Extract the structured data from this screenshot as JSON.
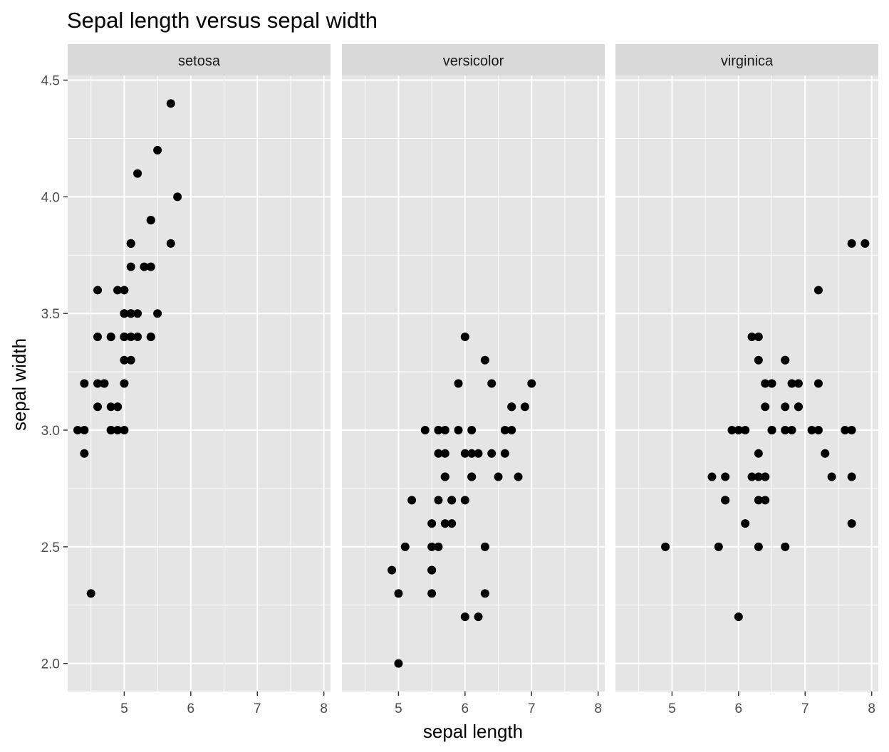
{
  "chart_data": {
    "type": "scatter",
    "title": "Sepal length versus sepal width",
    "xlabel": "sepal length",
    "ylabel": "sepal width",
    "xlim": [
      4.15,
      8.1
    ],
    "ylim": [
      1.88,
      4.52
    ],
    "x_ticks": [
      5,
      6,
      7,
      8
    ],
    "x_tick_labels": [
      "5",
      "6",
      "7",
      "8"
    ],
    "y_ticks": [
      2.0,
      2.5,
      3.0,
      3.5,
      4.0,
      4.5
    ],
    "y_tick_labels": [
      "2.0",
      "2.5",
      "3.0",
      "3.5",
      "4.0",
      "4.5"
    ],
    "grid": true,
    "colors": {
      "panel_background": "#e5e5e5",
      "strip_background": "#d9d9d9",
      "grid": "#ffffff",
      "point": "#000000"
    },
    "facets": [
      {
        "label": "setosa",
        "points": [
          [
            5.1,
            3.5
          ],
          [
            4.9,
            3.0
          ],
          [
            4.7,
            3.2
          ],
          [
            4.6,
            3.1
          ],
          [
            5.0,
            3.6
          ],
          [
            5.4,
            3.9
          ],
          [
            4.6,
            3.4
          ],
          [
            5.0,
            3.4
          ],
          [
            4.4,
            2.9
          ],
          [
            4.9,
            3.1
          ],
          [
            5.4,
            3.7
          ],
          [
            4.8,
            3.4
          ],
          [
            4.8,
            3.0
          ],
          [
            4.3,
            3.0
          ],
          [
            5.8,
            4.0
          ],
          [
            5.7,
            4.4
          ],
          [
            5.4,
            3.9
          ],
          [
            5.1,
            3.5
          ],
          [
            5.7,
            3.8
          ],
          [
            5.1,
            3.8
          ],
          [
            5.4,
            3.4
          ],
          [
            5.1,
            3.7
          ],
          [
            4.6,
            3.6
          ],
          [
            5.1,
            3.3
          ],
          [
            4.8,
            3.4
          ],
          [
            5.0,
            3.0
          ],
          [
            5.0,
            3.4
          ],
          [
            5.2,
            3.5
          ],
          [
            5.2,
            3.4
          ],
          [
            4.7,
            3.2
          ],
          [
            4.8,
            3.1
          ],
          [
            5.4,
            3.4
          ],
          [
            5.2,
            4.1
          ],
          [
            5.5,
            4.2
          ],
          [
            4.9,
            3.1
          ],
          [
            5.0,
            3.2
          ],
          [
            5.5,
            3.5
          ],
          [
            4.9,
            3.6
          ],
          [
            4.4,
            3.0
          ],
          [
            5.1,
            3.4
          ],
          [
            5.0,
            3.5
          ],
          [
            4.5,
            2.3
          ],
          [
            4.4,
            3.2
          ],
          [
            5.0,
            3.5
          ],
          [
            5.1,
            3.8
          ],
          [
            4.8,
            3.0
          ],
          [
            5.1,
            3.8
          ],
          [
            4.6,
            3.2
          ],
          [
            5.3,
            3.7
          ],
          [
            5.0,
            3.3
          ]
        ]
      },
      {
        "label": "versicolor",
        "points": [
          [
            7.0,
            3.2
          ],
          [
            6.4,
            3.2
          ],
          [
            6.9,
            3.1
          ],
          [
            5.5,
            2.3
          ],
          [
            6.5,
            2.8
          ],
          [
            5.7,
            2.8
          ],
          [
            6.3,
            3.3
          ],
          [
            4.9,
            2.4
          ],
          [
            6.6,
            2.9
          ],
          [
            5.2,
            2.7
          ],
          [
            5.0,
            2.0
          ],
          [
            5.9,
            3.0
          ],
          [
            6.0,
            2.2
          ],
          [
            6.1,
            2.9
          ],
          [
            5.6,
            2.9
          ],
          [
            6.7,
            3.1
          ],
          [
            5.6,
            3.0
          ],
          [
            5.8,
            2.7
          ],
          [
            6.2,
            2.2
          ],
          [
            5.6,
            2.5
          ],
          [
            5.9,
            3.2
          ],
          [
            6.1,
            2.8
          ],
          [
            6.3,
            2.5
          ],
          [
            6.1,
            2.8
          ],
          [
            6.4,
            2.9
          ],
          [
            6.6,
            3.0
          ],
          [
            6.8,
            2.8
          ],
          [
            6.7,
            3.0
          ],
          [
            6.0,
            2.9
          ],
          [
            5.7,
            2.6
          ],
          [
            5.5,
            2.4
          ],
          [
            5.5,
            2.4
          ],
          [
            5.8,
            2.7
          ],
          [
            6.0,
            2.7
          ],
          [
            5.4,
            3.0
          ],
          [
            6.0,
            3.4
          ],
          [
            6.7,
            3.1
          ],
          [
            6.3,
            2.3
          ],
          [
            5.6,
            3.0
          ],
          [
            5.5,
            2.5
          ],
          [
            5.5,
            2.6
          ],
          [
            6.1,
            3.0
          ],
          [
            5.8,
            2.6
          ],
          [
            5.0,
            2.3
          ],
          [
            5.6,
            2.7
          ],
          [
            5.7,
            3.0
          ],
          [
            5.7,
            2.9
          ],
          [
            6.2,
            2.9
          ],
          [
            5.1,
            2.5
          ],
          [
            5.7,
            2.8
          ]
        ]
      },
      {
        "label": "virginica",
        "points": [
          [
            6.3,
            3.3
          ],
          [
            5.8,
            2.7
          ],
          [
            7.1,
            3.0
          ],
          [
            6.3,
            2.9
          ],
          [
            6.5,
            3.0
          ],
          [
            7.6,
            3.0
          ],
          [
            4.9,
            2.5
          ],
          [
            7.3,
            2.9
          ],
          [
            6.7,
            2.5
          ],
          [
            7.2,
            3.6
          ],
          [
            6.5,
            3.2
          ],
          [
            6.4,
            2.7
          ],
          [
            6.8,
            3.0
          ],
          [
            5.7,
            2.5
          ],
          [
            5.8,
            2.8
          ],
          [
            6.4,
            3.2
          ],
          [
            6.5,
            3.0
          ],
          [
            7.7,
            3.8
          ],
          [
            7.7,
            2.6
          ],
          [
            6.0,
            2.2
          ],
          [
            6.9,
            3.2
          ],
          [
            5.6,
            2.8
          ],
          [
            7.7,
            2.8
          ],
          [
            6.3,
            2.7
          ],
          [
            6.7,
            3.3
          ],
          [
            7.2,
            3.2
          ],
          [
            6.2,
            2.8
          ],
          [
            6.1,
            3.0
          ],
          [
            6.4,
            2.8
          ],
          [
            7.2,
            3.0
          ],
          [
            7.4,
            2.8
          ],
          [
            7.9,
            3.8
          ],
          [
            6.4,
            2.8
          ],
          [
            6.3,
            2.8
          ],
          [
            6.1,
            2.6
          ],
          [
            7.7,
            3.0
          ],
          [
            6.3,
            3.4
          ],
          [
            6.4,
            3.1
          ],
          [
            6.0,
            3.0
          ],
          [
            6.9,
            3.1
          ],
          [
            6.7,
            3.1
          ],
          [
            6.9,
            3.1
          ],
          [
            5.8,
            2.7
          ],
          [
            6.8,
            3.2
          ],
          [
            6.7,
            3.3
          ],
          [
            6.7,
            3.0
          ],
          [
            6.3,
            2.5
          ],
          [
            6.5,
            3.0
          ],
          [
            6.2,
            3.4
          ],
          [
            5.9,
            3.0
          ]
        ]
      }
    ]
  }
}
